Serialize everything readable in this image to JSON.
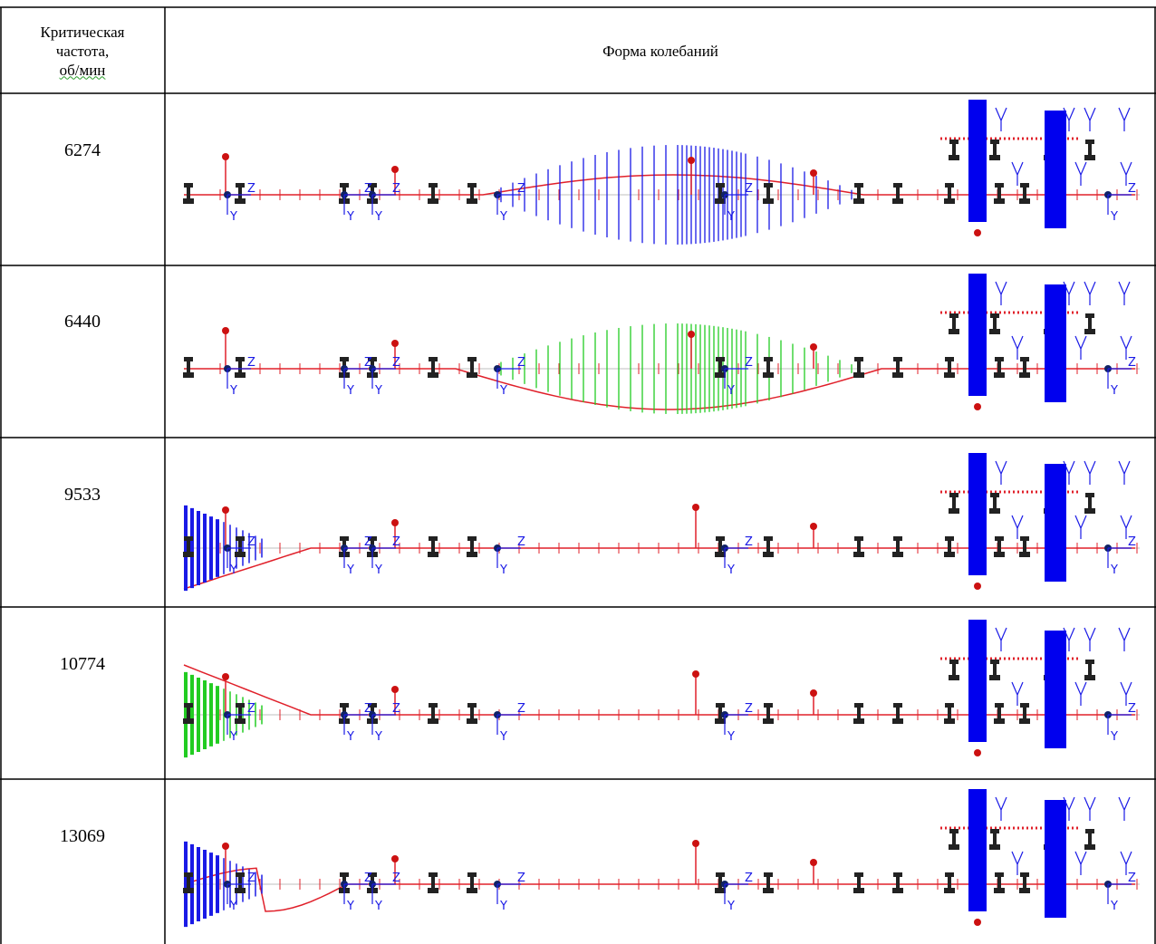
{
  "header": {
    "col1_line1": "Критическая",
    "col1_line2": "частота,",
    "col1_line3": "об/мин",
    "col2": "Форма колебаний"
  },
  "rows": [
    {
      "frequency": "6274",
      "mode_color": "blue",
      "shape": "mid-bulge-up"
    },
    {
      "frequency": "6440",
      "mode_color": "green",
      "shape": "mid-bulge-down"
    },
    {
      "frequency": "9533",
      "mode_color": "blue",
      "shape": "left-end"
    },
    {
      "frequency": "10774",
      "mode_color": "green",
      "shape": "left-end"
    },
    {
      "frequency": "13069",
      "mode_color": "blue",
      "shape": "left-end-wave"
    }
  ],
  "diagram_labels": {
    "axis_z": "Z",
    "axis_y": "Y"
  },
  "colors": {
    "shaft": "#e0202a",
    "blue_mode": "#1a1ae6",
    "green_mode": "#22cc22",
    "disk": "#0000ee",
    "support": "#222222",
    "grid": "#000000"
  }
}
